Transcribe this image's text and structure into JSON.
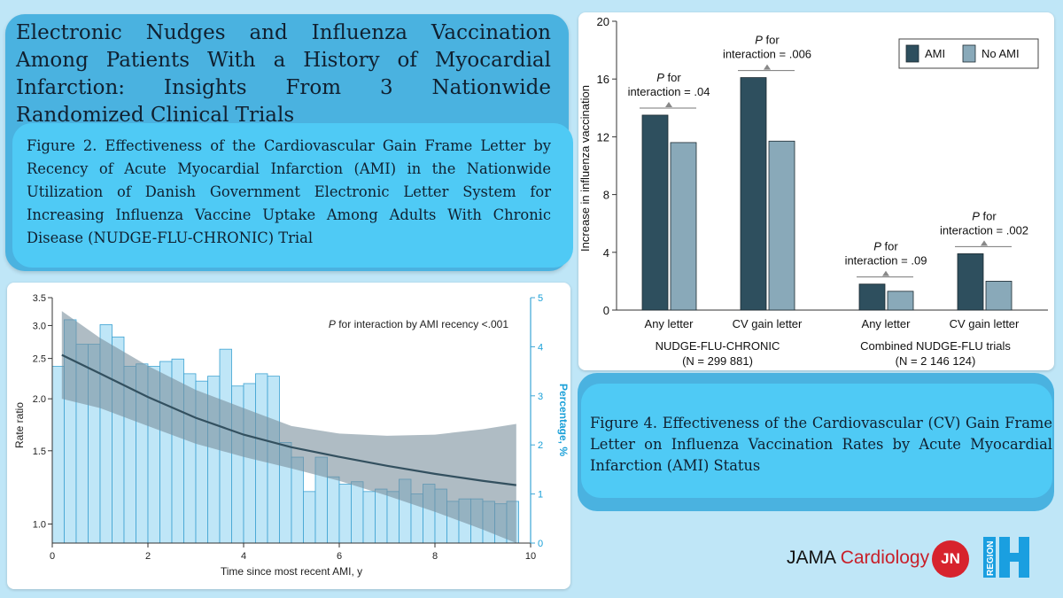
{
  "title": "Electronic Nudges and Influenza Vaccination Among Patients With a History of Myocardial Infarction: Insights From 3 Nationwide Randomized Clinical Trials",
  "figure2_caption": "Figure 2. Effectiveness of the Cardiovascular Gain Frame Letter by Recency of Acute Myocardial Infarction (AMI) in the Nationwide Utilization of Danish Government Electronic Letter System for Increasing Influenza Vaccine Uptake Among Adults With Chronic Disease (NUDGE-FLU-CHRONIC) Trial",
  "figure4_caption": "Figure 4. Effectiveness of the Cardiovascular (CV) Gain Frame Letter on Influenza Vaccination Rates by Acute Myocardial Infarction (AMI) Status",
  "logos": {
    "jama": "JAMA",
    "cardiology": "Cardiology",
    "jn": "JN",
    "region": "REGION"
  },
  "colors": {
    "background": "#bfe6f7",
    "panel": "#4ab2e0",
    "caption_box": "#4fcaf5",
    "ami": "#2e4f5e",
    "no_ami": "#89a9b9",
    "histogram": "#bfe6f7",
    "curve": "#33505f",
    "ci_band": "#7a909d",
    "brand_red": "#d7232d",
    "region_blue": "#1a9fe0"
  },
  "chart_data": [
    {
      "type": "line",
      "id": "figure2",
      "annotation": "P for interaction by AMI recency <.001",
      "xlabel": "Time since most recent AMI, y",
      "ylabel": "Rate ratio",
      "y2label": "Percentage, %",
      "xlim": [
        0,
        10
      ],
      "x_ticks": [
        0,
        2,
        4,
        6,
        8,
        10
      ],
      "ylim_log": [
        0.9,
        3.5
      ],
      "y_ticks": [
        1.0,
        1.5,
        2.0,
        2.5,
        3.0,
        3.5
      ],
      "y_tick_labels": [
        "1.0",
        "1.5",
        "2.0",
        "2.5",
        "3.0",
        "3.5"
      ],
      "y2lim": [
        0,
        5
      ],
      "y2_ticks": [
        0,
        1,
        2,
        3,
        4,
        5
      ],
      "histogram": {
        "bin_width": 0.25,
        "x_start": 0.125,
        "percentages": [
          3.6,
          4.55,
          4.05,
          4.05,
          4.45,
          4.2,
          3.6,
          3.65,
          3.6,
          3.7,
          3.75,
          3.45,
          3.3,
          3.4,
          3.95,
          3.2,
          3.25,
          3.45,
          3.4,
          2.05,
          1.75,
          1.05,
          1.75,
          1.35,
          1.2,
          1.25,
          1.05,
          1.1,
          1.05,
          1.3,
          1.0,
          1.2,
          1.1,
          0.85,
          0.9,
          0.9,
          0.85,
          0.8,
          0.85
        ]
      },
      "series": [
        {
          "name": "Rate ratio",
          "x": [
            0.2,
            1,
            2,
            3,
            4,
            5,
            6,
            7,
            8,
            9,
            9.7
          ],
          "y": [
            2.55,
            2.3,
            2.02,
            1.8,
            1.64,
            1.53,
            1.45,
            1.38,
            1.32,
            1.27,
            1.24
          ]
        },
        {
          "name": "CI upper",
          "x": [
            0.2,
            1,
            2,
            3,
            4,
            5,
            6,
            7,
            8,
            9,
            9.7
          ],
          "y": [
            3.25,
            2.8,
            2.4,
            2.1,
            1.9,
            1.72,
            1.65,
            1.63,
            1.64,
            1.69,
            1.74
          ]
        },
        {
          "name": "CI lower",
          "x": [
            0.2,
            1,
            2,
            3,
            4,
            5,
            6,
            7,
            8,
            9,
            9.7
          ],
          "y": [
            2.0,
            1.9,
            1.72,
            1.56,
            1.45,
            1.36,
            1.27,
            1.17,
            1.07,
            0.97,
            0.9
          ]
        }
      ]
    },
    {
      "type": "bar",
      "id": "figure4",
      "ylabel": "Increase in influenza vaccination",
      "ylim": [
        0,
        20
      ],
      "y_ticks": [
        0,
        4,
        8,
        12,
        16,
        20
      ],
      "legend": [
        {
          "name": "AMI",
          "color": "#2e4f5e"
        },
        {
          "name": "No AMI",
          "color": "#89a9b9"
        }
      ],
      "legend_position": "top-right",
      "groups": [
        {
          "name": "NUDGE-FLU-CHRONIC",
          "n": "(N = 299 881)",
          "categories": [
            "Any letter",
            "CV gain letter"
          ]
        },
        {
          "name": "Combined NUDGE-FLU trials",
          "n": "(N = 2 146 124)",
          "categories": [
            "Any letter",
            "CV gain letter"
          ]
        }
      ],
      "categories": [
        "Any letter",
        "CV gain letter",
        "Any letter",
        "CV gain letter"
      ],
      "series": [
        {
          "name": "AMI",
          "values": [
            13.5,
            16.1,
            1.8,
            3.9
          ]
        },
        {
          "name": "No AMI",
          "values": [
            11.6,
            11.7,
            1.3,
            2.0
          ]
        }
      ],
      "annotations": [
        {
          "p_label": "P",
          "p_for": "for",
          "interaction": "interaction = .04"
        },
        {
          "p_label": "P",
          "p_for": "for",
          "interaction": "interaction = .006"
        },
        {
          "p_label": "P",
          "p_for": "for",
          "interaction": "interaction = .09"
        },
        {
          "p_label": "P",
          "p_for": "for",
          "interaction": "interaction = .002"
        }
      ]
    }
  ]
}
